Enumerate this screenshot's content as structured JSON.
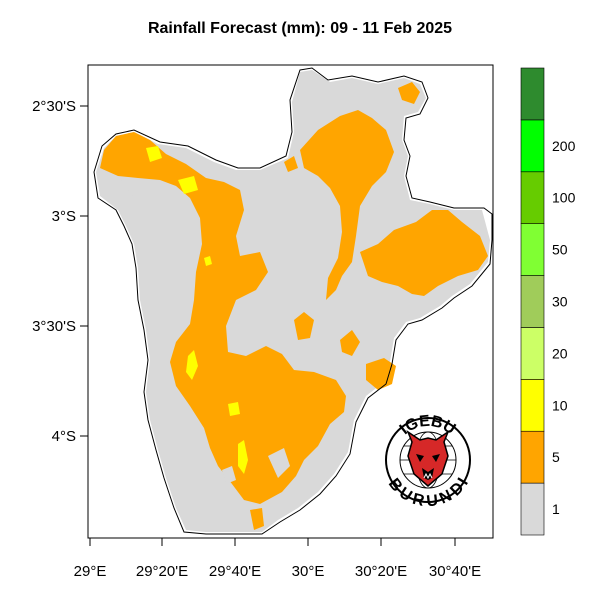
{
  "title": "Rainfall Forecast (mm): 09 - 11 Feb 2025",
  "axes": {
    "y_ticks": [
      "2°30'S",
      "3°S",
      "3°30'S",
      "4°S"
    ],
    "x_ticks": [
      "29°E",
      "29°20'E",
      "29°40'E",
      "30°E",
      "30°20'E",
      "30°40'E"
    ]
  },
  "legend": {
    "levels": [
      {
        "label": "1",
        "color": "#d9d9d9"
      },
      {
        "label": "5",
        "color": "#ffa500"
      },
      {
        "label": "10",
        "color": "#ffff00"
      },
      {
        "label": "20",
        "color": "#ccff66"
      },
      {
        "label": "30",
        "color": "#a0cc5a"
      },
      {
        "label": "50",
        "color": "#80ff33"
      },
      {
        "label": "100",
        "color": "#66cc00"
      },
      {
        "label": "200",
        "color": "#00ff00"
      },
      {
        "label": "",
        "color": "#2e8b2e"
      }
    ]
  },
  "logo": {
    "top_text": "IGEBU",
    "bottom_text": "BURUNDI",
    "icon": "leopard-head-globe-icon"
  },
  "map_colors": {
    "background": "#d9d9d9",
    "rain_1_5": "#ffa500",
    "rain_5_10": "#ffff00",
    "border": "#000000"
  }
}
